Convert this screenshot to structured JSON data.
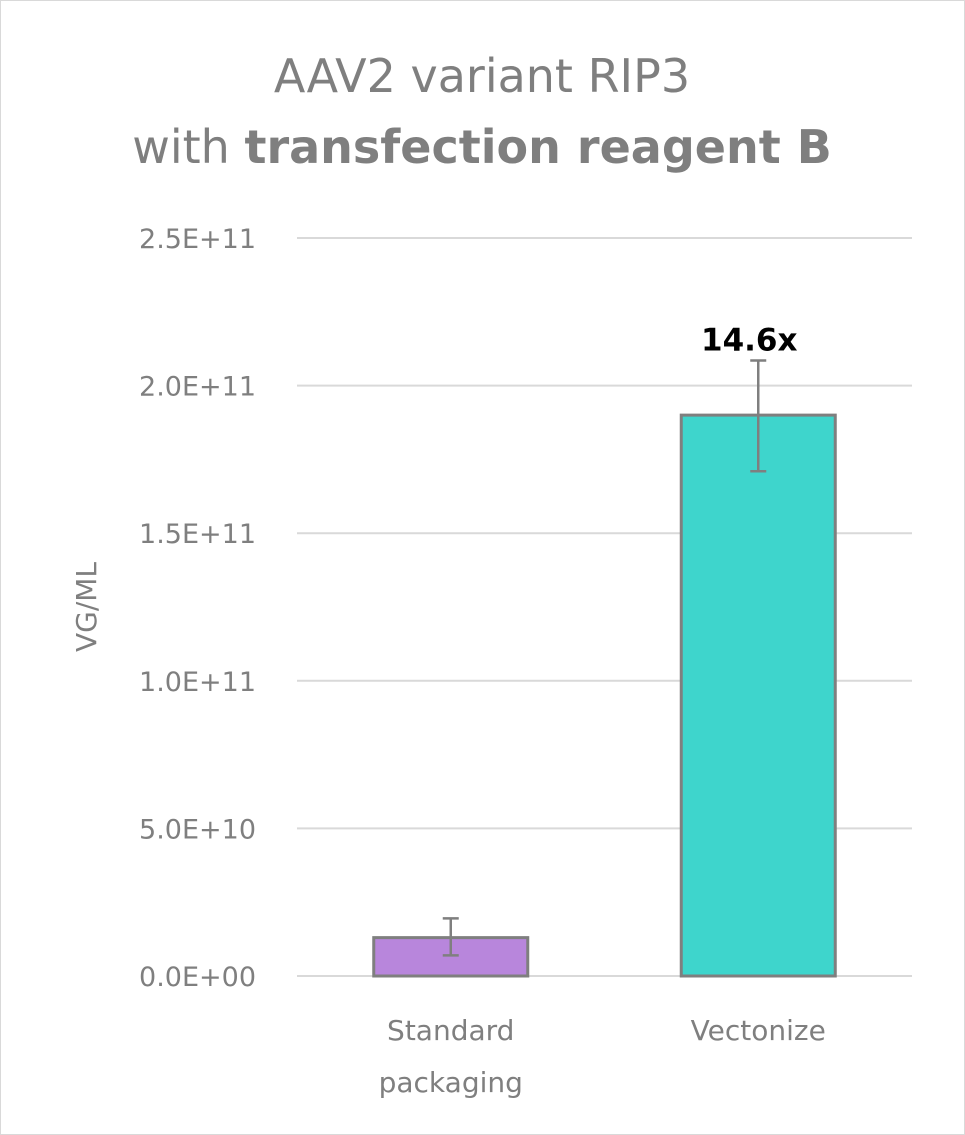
{
  "chart_data": {
    "type": "bar",
    "title_line1": "AAV2 variant RIP3",
    "title_line2_prefix": "with ",
    "title_line2_bold": "transfection reagent B",
    "xlabel": "",
    "ylabel": "VG/ML",
    "ylim": [
      0,
      250000000000
    ],
    "yticks": [
      0,
      50000000000,
      100000000000,
      150000000000,
      200000000000,
      250000000000
    ],
    "ytick_labels": [
      "0.0E+00",
      "5.0E+10",
      "1.0E+11",
      "1.5E+11",
      "2.0E+11",
      "2.5E+11"
    ],
    "grid": true,
    "categories": [
      [
        "Standard",
        "packaging"
      ],
      [
        "Vectonize"
      ]
    ],
    "values": [
      13000000000,
      190000000000
    ],
    "error": [
      [
        7000000000,
        19500000000
      ],
      [
        171000000000,
        208500000000
      ]
    ],
    "bar_colors": [
      "#b886dc",
      "#3ed5cc"
    ],
    "data_labels": [
      "",
      "14.6x"
    ]
  }
}
